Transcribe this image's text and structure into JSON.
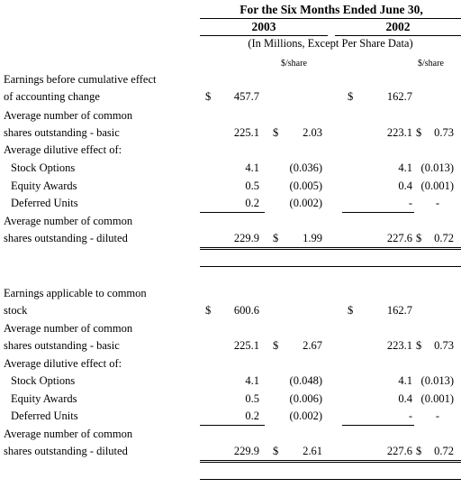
{
  "header": {
    "period_title": "For the Six Months Ended June 30,",
    "year_2003": "2003",
    "year_2002": "2002",
    "units_note": "(In Millions, Except Per Share Data)",
    "per_share_2003": "$/share",
    "per_share_2002": "$/share"
  },
  "section1": {
    "row_earnings": {
      "label_l1": "Earnings before cumulative effect",
      "label_l2": "of accounting change",
      "cur1": "$",
      "v2003": "457.7",
      "cur2": "$",
      "v2002": "162.7"
    },
    "row_basic": {
      "label_l1": "Average number of common",
      "label_l2": "shares outstanding - basic",
      "v2003": "225.1",
      "ps_cur1": "$",
      "ps2003": "2.03",
      "v2002": "223.1",
      "ps_cur2": "$",
      "ps2002": "0.73"
    },
    "dilutive_heading": "Average dilutive effect of:",
    "row_options": {
      "label": "Stock Options",
      "v2003": "4.1",
      "ps2003": "(0.036)",
      "v2002": "4.1",
      "ps2002": "(0.013)"
    },
    "row_awards": {
      "label": "Equity Awards",
      "v2003": "0.5",
      "ps2003": "(0.005)",
      "v2002": "0.4",
      "ps2002": "(0.001)"
    },
    "row_deferred": {
      "label": "Deferred Units",
      "v2003": "0.2",
      "ps2003": "(0.002)",
      "v2002": "-",
      "ps2002": "-"
    },
    "row_diluted": {
      "label_l1": "Average number of common",
      "label_l2": "shares outstanding - diluted",
      "v2003": "229.9",
      "ps_cur1": "$",
      "ps2003": "1.99",
      "v2002": "227.6",
      "ps_cur2": "$",
      "ps2002": "0.72"
    }
  },
  "section2": {
    "row_earnings": {
      "label_l1": "Earnings applicable to common",
      "label_l2": "stock",
      "cur1": "$",
      "v2003": "600.6",
      "cur2": "$",
      "v2002": "162.7"
    },
    "row_basic": {
      "label_l1": "Average number of common",
      "label_l2": "shares outstanding - basic",
      "v2003": "225.1",
      "ps_cur1": "$",
      "ps2003": "2.67",
      "v2002": "223.1",
      "ps_cur2": "$",
      "ps2002": "0.73"
    },
    "dilutive_heading": "Average dilutive effect of:",
    "row_options": {
      "label": "Stock Options",
      "v2003": "4.1",
      "ps2003": "(0.048)",
      "v2002": "4.1",
      "ps2002": "(0.013)"
    },
    "row_awards": {
      "label": "Equity Awards",
      "v2003": "0.5",
      "ps2003": "(0.006)",
      "v2002": "0.4",
      "ps2002": "(0.001)"
    },
    "row_deferred": {
      "label": "Deferred Units",
      "v2003": "0.2",
      "ps2003": "(0.002)",
      "v2002": "-",
      "ps2002": "-"
    },
    "row_diluted": {
      "label_l1": "Average number of common",
      "label_l2": "shares outstanding - diluted",
      "v2003": "229.9",
      "ps_cur1": "$",
      "ps2003": "2.61",
      "v2002": "227.6",
      "ps_cur2": "$",
      "ps2002": "0.72"
    }
  }
}
